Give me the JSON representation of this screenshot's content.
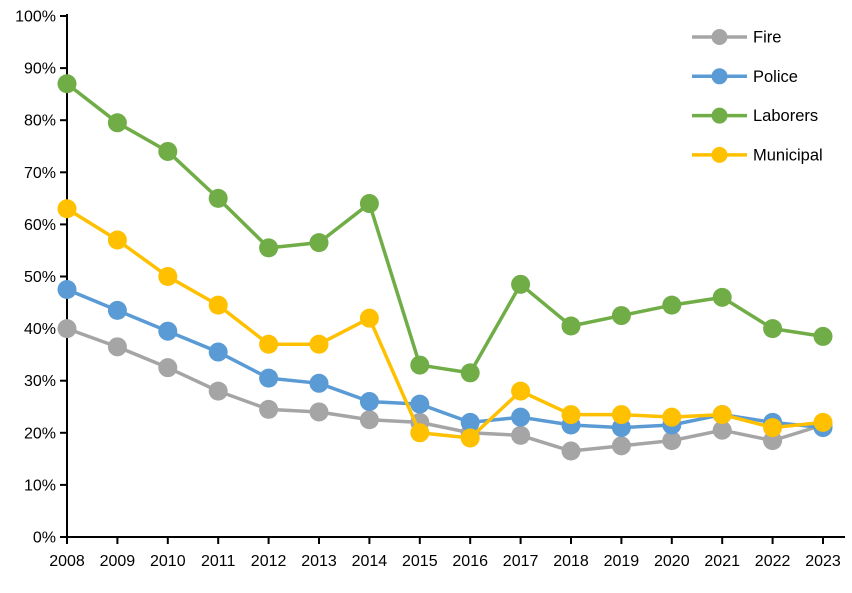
{
  "chart_data": {
    "type": "line",
    "title": "",
    "xlabel": "",
    "ylabel": "",
    "grid": false,
    "marker": "circle",
    "legend_position": "top-right",
    "ylim": [
      0,
      100
    ],
    "y_tick_step": 10,
    "y_tick_labels": [
      "0%",
      "10%",
      "20%",
      "30%",
      "40%",
      "50%",
      "60%",
      "70%",
      "80%",
      "90%",
      "100%"
    ],
    "categories": [
      "2008",
      "2009",
      "2010",
      "2011",
      "2012",
      "2013",
      "2014",
      "2015",
      "2016",
      "2017",
      "2018",
      "2019",
      "2020",
      "2021",
      "2022",
      "2023"
    ],
    "series": [
      {
        "name": "Fire",
        "color": "#A5A5A5",
        "values": [
          40,
          36.5,
          32.5,
          28,
          24.5,
          24,
          22.5,
          22,
          20,
          19.5,
          16.5,
          17.5,
          18.5,
          20.5,
          18.5,
          21.5
        ]
      },
      {
        "name": "Police",
        "color": "#5B9BD5",
        "values": [
          47.5,
          43.5,
          39.5,
          35.5,
          30.5,
          29.5,
          26,
          25.5,
          22,
          23,
          21.5,
          21,
          21.5,
          23.5,
          22,
          21
        ]
      },
      {
        "name": "Laborers",
        "color": "#70AD47",
        "values": [
          87,
          79.5,
          74,
          65,
          55.5,
          56.5,
          64,
          33,
          31.5,
          48.5,
          40.5,
          42.5,
          44.5,
          46,
          40,
          38.5
        ]
      },
      {
        "name": "Municipal",
        "color": "#FFC000",
        "values": [
          63,
          57,
          50,
          44.5,
          37,
          37,
          42,
          20,
          19,
          28,
          23.5,
          23.5,
          23,
          23.5,
          21,
          22
        ]
      }
    ],
    "legend": {
      "items": [
        "Fire",
        "Police",
        "Laborers",
        "Municipal"
      ]
    },
    "axis_color": "#000000",
    "text_color": "#000000"
  }
}
